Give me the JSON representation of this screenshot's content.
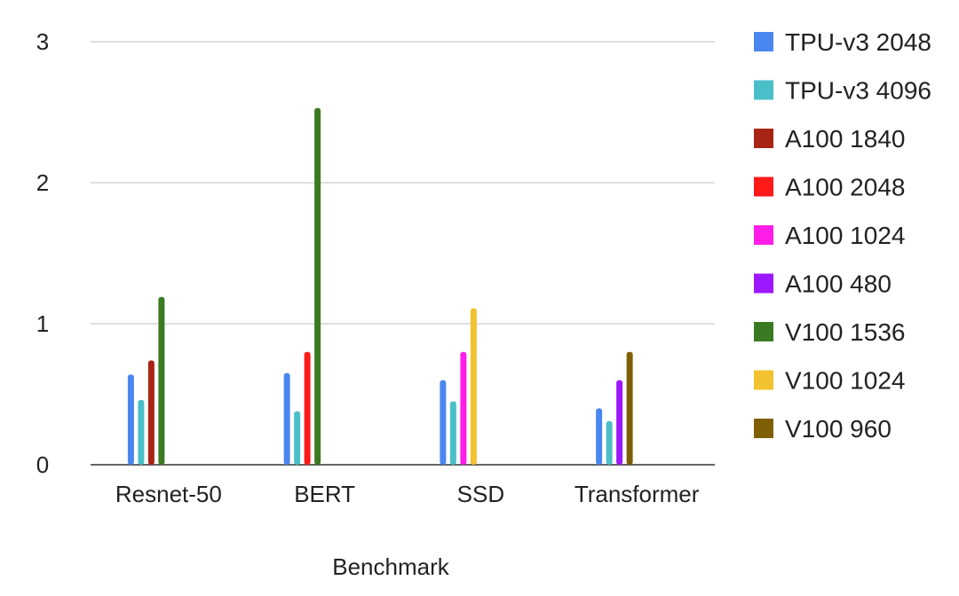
{
  "chart_data": {
    "type": "bar",
    "title": "",
    "xlabel": "Benchmark",
    "ylabel": "",
    "ylim": [
      0,
      3
    ],
    "yticks": [
      "0",
      "1",
      "2",
      "3"
    ],
    "grid": true,
    "legend_position": "right",
    "categories": [
      "Resnet-50",
      "BERT",
      "SSD",
      "Transformer"
    ],
    "series": [
      {
        "name": "TPU-v3 2048",
        "color": "#4a86f0",
        "values": [
          0.64,
          0.65,
          0.6,
          0.4
        ]
      },
      {
        "name": "TPU-v3 4096",
        "color": "#4bbfc8",
        "values": [
          0.46,
          0.38,
          0.45,
          0.31
        ]
      },
      {
        "name": "A100 1840",
        "color": "#a82414",
        "values": [
          0.74,
          null,
          null,
          null
        ]
      },
      {
        "name": "A100 2048",
        "color": "#ff1a1a",
        "values": [
          null,
          0.8,
          null,
          null
        ]
      },
      {
        "name": "A100 1024",
        "color": "#ff1ee8",
        "values": [
          null,
          null,
          0.8,
          null
        ]
      },
      {
        "name": "A100 480",
        "color": "#9c18ff",
        "values": [
          null,
          null,
          null,
          0.6
        ]
      },
      {
        "name": "V100 1536",
        "color": "#3a7a22",
        "values": [
          1.19,
          2.53,
          null,
          null
        ]
      },
      {
        "name": "V100 1024",
        "color": "#f2c230",
        "values": [
          null,
          null,
          1.11,
          null
        ]
      },
      {
        "name": "V100 960",
        "color": "#7f5f06",
        "values": [
          null,
          null,
          null,
          0.8
        ]
      }
    ]
  }
}
